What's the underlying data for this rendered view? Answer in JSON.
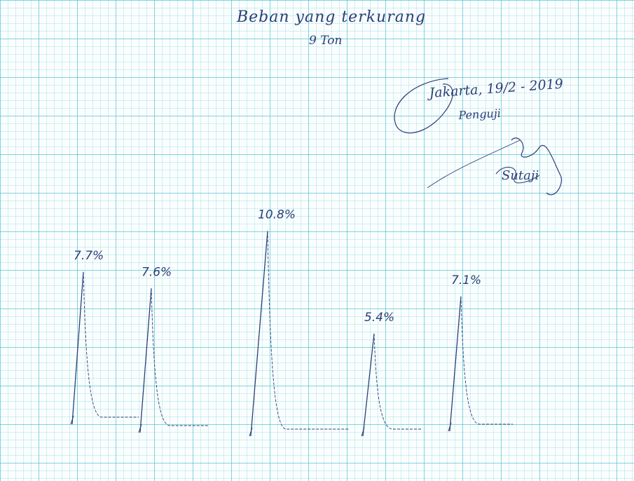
{
  "header": {
    "title": "Beban yang terkurang",
    "subtitle": "9 Ton"
  },
  "signature_block": {
    "place_date": "Jakarta, 19/2 - 2019",
    "role": "Penguji",
    "signer": "Sutaji"
  },
  "colors": {
    "ink": "#2c3f78",
    "grid": "#40becd",
    "paper": "#fbfefe"
  },
  "chart_data": {
    "type": "line",
    "title": "Beban yang terkurang",
    "subtitle": "9 Ton",
    "unit": "%",
    "grid": true,
    "series": [
      {
        "label": "7.7%",
        "value": 7.7
      },
      {
        "label": "7.6%",
        "value": 7.6
      },
      {
        "label": "10.8%",
        "value": 10.8
      },
      {
        "label": "5.4%",
        "value": 5.4
      },
      {
        "label": "7.1%",
        "value": 7.1
      }
    ]
  }
}
